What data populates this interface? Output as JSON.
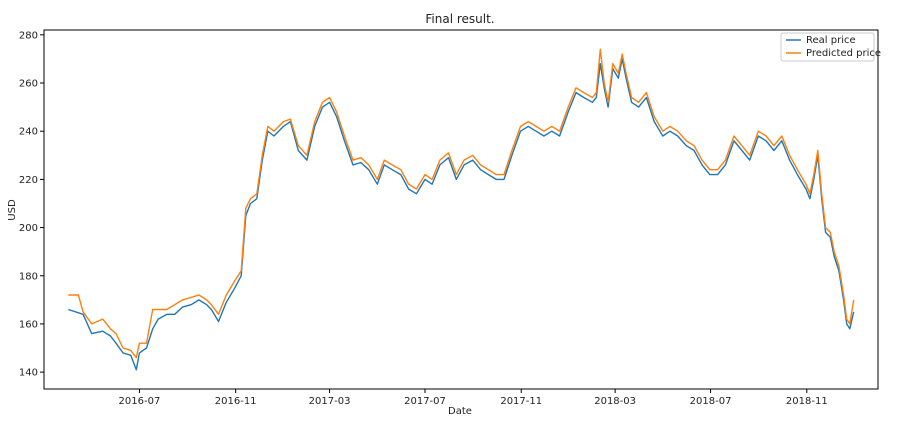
{
  "chart_data": {
    "type": "line",
    "title": "Final result.",
    "xlabel": "Date",
    "ylabel": "USD",
    "xlim": [
      "2016-03-01",
      "2019-01-31"
    ],
    "ylim": [
      133,
      282
    ],
    "x_ticks": [
      "2016-07",
      "2016-11",
      "2017-03",
      "2017-07",
      "2017-11",
      "2018-03",
      "2018-07",
      "2018-11"
    ],
    "y_ticks": [
      140,
      160,
      180,
      200,
      220,
      240,
      260,
      280
    ],
    "grid": false,
    "legend_position": "top-right",
    "series": [
      {
        "name": "Real price",
        "color": "#1f77b4",
        "points": [
          [
            "2016-04-01",
            166
          ],
          [
            "2016-04-20",
            164
          ],
          [
            "2016-05-01",
            156
          ],
          [
            "2016-05-15",
            157
          ],
          [
            "2016-05-25",
            155
          ],
          [
            "2016-06-01",
            152
          ],
          [
            "2016-06-10",
            148
          ],
          [
            "2016-06-20",
            147
          ],
          [
            "2016-06-27",
            141
          ],
          [
            "2016-07-01",
            148
          ],
          [
            "2016-07-10",
            150
          ],
          [
            "2016-07-18",
            158
          ],
          [
            "2016-07-25",
            162
          ],
          [
            "2016-08-05",
            164
          ],
          [
            "2016-08-15",
            164
          ],
          [
            "2016-08-25",
            167
          ],
          [
            "2016-09-05",
            168
          ],
          [
            "2016-09-15",
            170
          ],
          [
            "2016-09-25",
            168
          ],
          [
            "2016-10-01",
            166
          ],
          [
            "2016-10-10",
            161
          ],
          [
            "2016-10-20",
            169
          ],
          [
            "2016-10-31",
            175
          ],
          [
            "2016-11-08",
            180
          ],
          [
            "2016-11-14",
            205
          ],
          [
            "2016-11-20",
            210
          ],
          [
            "2016-11-28",
            212
          ],
          [
            "2016-12-05",
            228
          ],
          [
            "2016-12-12",
            240
          ],
          [
            "2016-12-20",
            238
          ],
          [
            "2017-01-01",
            242
          ],
          [
            "2017-01-10",
            244
          ],
          [
            "2017-01-20",
            232
          ],
          [
            "2017-01-31",
            228
          ],
          [
            "2017-02-10",
            242
          ],
          [
            "2017-02-20",
            250
          ],
          [
            "2017-03-01",
            252
          ],
          [
            "2017-03-10",
            246
          ],
          [
            "2017-03-20",
            236
          ],
          [
            "2017-03-31",
            226
          ],
          [
            "2017-04-10",
            227
          ],
          [
            "2017-04-20",
            224
          ],
          [
            "2017-05-01",
            218
          ],
          [
            "2017-05-10",
            226
          ],
          [
            "2017-05-20",
            224
          ],
          [
            "2017-05-31",
            222
          ],
          [
            "2017-06-10",
            216
          ],
          [
            "2017-06-20",
            214
          ],
          [
            "2017-07-01",
            220
          ],
          [
            "2017-07-10",
            218
          ],
          [
            "2017-07-20",
            226
          ],
          [
            "2017-07-31",
            229
          ],
          [
            "2017-08-10",
            220
          ],
          [
            "2017-08-20",
            226
          ],
          [
            "2017-08-31",
            228
          ],
          [
            "2017-09-10",
            224
          ],
          [
            "2017-09-20",
            222
          ],
          [
            "2017-09-30",
            220
          ],
          [
            "2017-10-10",
            220
          ],
          [
            "2017-10-20",
            230
          ],
          [
            "2017-10-31",
            240
          ],
          [
            "2017-11-10",
            242
          ],
          [
            "2017-11-20",
            240
          ],
          [
            "2017-11-30",
            238
          ],
          [
            "2017-12-10",
            240
          ],
          [
            "2017-12-20",
            238
          ],
          [
            "2017-12-31",
            248
          ],
          [
            "2018-01-10",
            256
          ],
          [
            "2018-01-20",
            254
          ],
          [
            "2018-01-31",
            252
          ],
          [
            "2018-02-05",
            254
          ],
          [
            "2018-02-10",
            268
          ],
          [
            "2018-02-15",
            258
          ],
          [
            "2018-02-20",
            250
          ],
          [
            "2018-02-26",
            266
          ],
          [
            "2018-03-05",
            262
          ],
          [
            "2018-03-10",
            270
          ],
          [
            "2018-03-15",
            262
          ],
          [
            "2018-03-22",
            252
          ],
          [
            "2018-03-31",
            250
          ],
          [
            "2018-04-10",
            254
          ],
          [
            "2018-04-20",
            244
          ],
          [
            "2018-05-01",
            238
          ],
          [
            "2018-05-10",
            240
          ],
          [
            "2018-05-20",
            238
          ],
          [
            "2018-05-31",
            234
          ],
          [
            "2018-06-10",
            232
          ],
          [
            "2018-06-20",
            226
          ],
          [
            "2018-06-30",
            222
          ],
          [
            "2018-07-10",
            222
          ],
          [
            "2018-07-20",
            226
          ],
          [
            "2018-07-31",
            236
          ],
          [
            "2018-08-10",
            232
          ],
          [
            "2018-08-20",
            228
          ],
          [
            "2018-08-31",
            238
          ],
          [
            "2018-09-10",
            236
          ],
          [
            "2018-09-20",
            232
          ],
          [
            "2018-09-30",
            236
          ],
          [
            "2018-10-10",
            228
          ],
          [
            "2018-10-20",
            222
          ],
          [
            "2018-10-31",
            216
          ],
          [
            "2018-11-05",
            212
          ],
          [
            "2018-11-10",
            220
          ],
          [
            "2018-11-15",
            230
          ],
          [
            "2018-11-20",
            212
          ],
          [
            "2018-11-25",
            198
          ],
          [
            "2018-12-01",
            196
          ],
          [
            "2018-12-06",
            188
          ],
          [
            "2018-12-12",
            182
          ],
          [
            "2018-12-18",
            170
          ],
          [
            "2018-12-22",
            160
          ],
          [
            "2018-12-26",
            158
          ],
          [
            "2018-12-31",
            165
          ]
        ]
      },
      {
        "name": "Predicted price",
        "color": "#ff7f0e",
        "points": [
          [
            "2016-04-01",
            172
          ],
          [
            "2016-04-14",
            172
          ],
          [
            "2016-04-20",
            165
          ],
          [
            "2016-05-01",
            160
          ],
          [
            "2016-05-15",
            162
          ],
          [
            "2016-05-25",
            158
          ],
          [
            "2016-06-01",
            156
          ],
          [
            "2016-06-10",
            150
          ],
          [
            "2016-06-20",
            149
          ],
          [
            "2016-06-27",
            146
          ],
          [
            "2016-07-01",
            152
          ],
          [
            "2016-07-10",
            152
          ],
          [
            "2016-07-18",
            166
          ],
          [
            "2016-07-25",
            166
          ],
          [
            "2016-08-05",
            166
          ],
          [
            "2016-08-15",
            168
          ],
          [
            "2016-08-25",
            170
          ],
          [
            "2016-09-05",
            171
          ],
          [
            "2016-09-15",
            172
          ],
          [
            "2016-09-25",
            170
          ],
          [
            "2016-10-01",
            168
          ],
          [
            "2016-10-10",
            164
          ],
          [
            "2016-10-20",
            172
          ],
          [
            "2016-10-31",
            178
          ],
          [
            "2016-11-08",
            182
          ],
          [
            "2016-11-14",
            208
          ],
          [
            "2016-11-20",
            212
          ],
          [
            "2016-11-28",
            214
          ],
          [
            "2016-12-05",
            230
          ],
          [
            "2016-12-12",
            242
          ],
          [
            "2016-12-20",
            240
          ],
          [
            "2017-01-01",
            244
          ],
          [
            "2017-01-10",
            245
          ],
          [
            "2017-01-20",
            234
          ],
          [
            "2017-01-31",
            230
          ],
          [
            "2017-02-10",
            244
          ],
          [
            "2017-02-20",
            252
          ],
          [
            "2017-03-01",
            254
          ],
          [
            "2017-03-10",
            248
          ],
          [
            "2017-03-20",
            238
          ],
          [
            "2017-03-31",
            228
          ],
          [
            "2017-04-10",
            229
          ],
          [
            "2017-04-20",
            226
          ],
          [
            "2017-05-01",
            220
          ],
          [
            "2017-05-10",
            228
          ],
          [
            "2017-05-20",
            226
          ],
          [
            "2017-05-31",
            224
          ],
          [
            "2017-06-10",
            218
          ],
          [
            "2017-06-20",
            216
          ],
          [
            "2017-07-01",
            222
          ],
          [
            "2017-07-10",
            220
          ],
          [
            "2017-07-20",
            228
          ],
          [
            "2017-07-31",
            231
          ],
          [
            "2017-08-10",
            222
          ],
          [
            "2017-08-20",
            228
          ],
          [
            "2017-08-31",
            230
          ],
          [
            "2017-09-10",
            226
          ],
          [
            "2017-09-20",
            224
          ],
          [
            "2017-09-30",
            222
          ],
          [
            "2017-10-10",
            222
          ],
          [
            "2017-10-20",
            232
          ],
          [
            "2017-10-31",
            242
          ],
          [
            "2017-11-10",
            244
          ],
          [
            "2017-11-20",
            242
          ],
          [
            "2017-11-30",
            240
          ],
          [
            "2017-12-10",
            242
          ],
          [
            "2017-12-20",
            240
          ],
          [
            "2017-12-31",
            250
          ],
          [
            "2018-01-10",
            258
          ],
          [
            "2018-01-20",
            256
          ],
          [
            "2018-01-31",
            254
          ],
          [
            "2018-02-05",
            256
          ],
          [
            "2018-02-10",
            274
          ],
          [
            "2018-02-15",
            260
          ],
          [
            "2018-02-20",
            252
          ],
          [
            "2018-02-26",
            268
          ],
          [
            "2018-03-05",
            264
          ],
          [
            "2018-03-10",
            272
          ],
          [
            "2018-03-15",
            264
          ],
          [
            "2018-03-22",
            254
          ],
          [
            "2018-03-31",
            252
          ],
          [
            "2018-04-10",
            256
          ],
          [
            "2018-04-20",
            246
          ],
          [
            "2018-05-01",
            240
          ],
          [
            "2018-05-10",
            242
          ],
          [
            "2018-05-20",
            240
          ],
          [
            "2018-05-31",
            236
          ],
          [
            "2018-06-10",
            234
          ],
          [
            "2018-06-20",
            228
          ],
          [
            "2018-06-30",
            224
          ],
          [
            "2018-07-10",
            224
          ],
          [
            "2018-07-20",
            228
          ],
          [
            "2018-07-31",
            238
          ],
          [
            "2018-08-10",
            234
          ],
          [
            "2018-08-20",
            230
          ],
          [
            "2018-08-31",
            240
          ],
          [
            "2018-09-10",
            238
          ],
          [
            "2018-09-20",
            234
          ],
          [
            "2018-09-30",
            238
          ],
          [
            "2018-10-10",
            230
          ],
          [
            "2018-10-20",
            224
          ],
          [
            "2018-10-31",
            218
          ],
          [
            "2018-11-05",
            214
          ],
          [
            "2018-11-10",
            222
          ],
          [
            "2018-11-15",
            232
          ],
          [
            "2018-11-20",
            214
          ],
          [
            "2018-11-25",
            200
          ],
          [
            "2018-12-01",
            198
          ],
          [
            "2018-12-06",
            190
          ],
          [
            "2018-12-12",
            184
          ],
          [
            "2018-12-18",
            172
          ],
          [
            "2018-12-22",
            162
          ],
          [
            "2018-12-26",
            160
          ],
          [
            "2018-12-31",
            170
          ]
        ]
      }
    ]
  }
}
